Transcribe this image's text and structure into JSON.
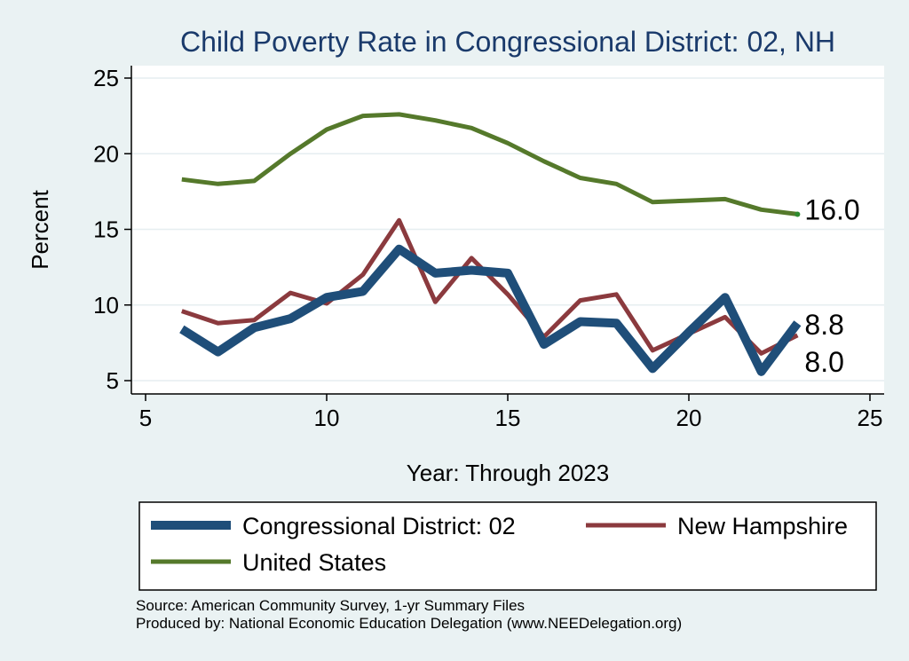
{
  "chart_data": {
    "type": "line",
    "title": "Child Poverty Rate in Congressional District:  02, NH",
    "xlabel": "Year: Through 2023",
    "ylabel": "Percent",
    "xlim": [
      5,
      25
    ],
    "ylim": [
      5,
      25
    ],
    "x_ticks": [
      "5",
      "10",
      "15",
      "20",
      "25"
    ],
    "y_ticks": [
      "5",
      "10",
      "15",
      "20",
      "25"
    ],
    "grid": true,
    "legend_position": "bottom",
    "series": [
      {
        "name": "Congressional District:  02",
        "color": "#1f4e79",
        "x": [
          6,
          7,
          8,
          9,
          10,
          11,
          12,
          13,
          14,
          15,
          16,
          17,
          18,
          19,
          20,
          21,
          22,
          23
        ],
        "values": [
          8.4,
          6.9,
          8.5,
          9.1,
          10.5,
          10.9,
          13.7,
          12.1,
          12.3,
          12.1,
          7.4,
          8.9,
          8.8,
          5.8,
          8.2,
          10.5,
          5.6,
          8.8
        ],
        "end_label": "8.8"
      },
      {
        "name": "New Hampshire",
        "color": "#8b3a3e",
        "x": [
          6,
          7,
          8,
          9,
          10,
          11,
          12,
          13,
          14,
          15,
          16,
          17,
          18,
          19,
          20,
          21,
          22,
          23
        ],
        "values": [
          9.6,
          8.8,
          9.0,
          10.8,
          10.1,
          12.0,
          15.6,
          10.2,
          13.1,
          10.7,
          7.9,
          10.3,
          10.7,
          7.0,
          8.1,
          9.2,
          6.8,
          8.0
        ],
        "end_label": "8.0"
      },
      {
        "name": "United States",
        "color": "#55792b",
        "x": [
          6,
          7,
          8,
          9,
          10,
          11,
          12,
          13,
          14,
          15,
          16,
          17,
          18,
          19,
          20,
          21,
          22,
          23
        ],
        "values": [
          18.3,
          18.0,
          18.2,
          20.0,
          21.6,
          22.5,
          22.6,
          22.2,
          21.7,
          20.7,
          19.5,
          18.4,
          18.0,
          16.8,
          16.9,
          17.0,
          16.3,
          16.0
        ],
        "end_label": "16.0"
      }
    ],
    "source_lines": [
      "Source: American Community Survey, 1-yr Summary Files",
      "Produced by: National Economic Education Delegation (www.NEEDelegation.org)"
    ]
  }
}
